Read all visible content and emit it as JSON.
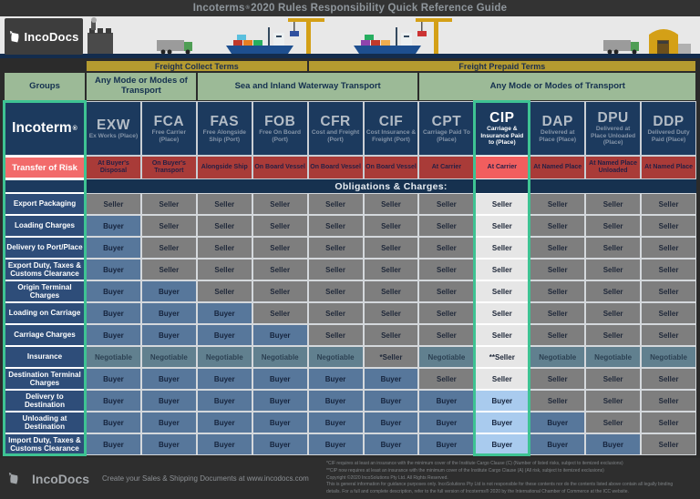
{
  "title": {
    "pre": "Incoterms",
    "mark": "®",
    "post": "2020 Rules Responsibility Quick Reference Guide"
  },
  "brand": {
    "name": "IncoDocs",
    "tagline": "Create your Sales & Shipping Documents at www.incodocs.com"
  },
  "bands": {
    "freight_collect": "Freight Collect Terms",
    "freight_prepaid": "Freight Prepaid Terms"
  },
  "groups_row": {
    "label": "Groups",
    "spans": [
      {
        "label": "Any Mode or Modes of Transport",
        "cols": 2
      },
      {
        "label": "Sea and Inland Waterway Transport",
        "cols": 4
      },
      {
        "label": "Any Mode or Modes of Transport",
        "cols": 5
      }
    ]
  },
  "incoterm_label": "Incoterm",
  "registered_mark": "®",
  "risk_label": "Transfer of Risk",
  "obligations_band": "Obligations & Charges:",
  "columns": [
    {
      "code": "EXW",
      "subtitle": "Ex Works (Place)",
      "risk": "At Buyer's Disposal",
      "highlight": false
    },
    {
      "code": "FCA",
      "subtitle": "Free Carrier (Place)",
      "risk": "On Buyer's Transport",
      "highlight": false
    },
    {
      "code": "FAS",
      "subtitle": "Free Alongside Ship (Port)",
      "risk": "Alongside Ship",
      "highlight": false
    },
    {
      "code": "FOB",
      "subtitle": "Free On Board (Port)",
      "risk": "On Board Vessel",
      "highlight": false
    },
    {
      "code": "CFR",
      "subtitle": "Cost and Freight (Port)",
      "risk": "On Board Vessel",
      "highlight": false
    },
    {
      "code": "CIF",
      "subtitle": "Cost Insurance & Freight (Port)",
      "risk": "On Board Vessel",
      "highlight": false
    },
    {
      "code": "CPT",
      "subtitle": "Carriage Paid To (Place)",
      "risk": "At Carrier",
      "highlight": false
    },
    {
      "code": "CIP",
      "subtitle": "Carriage & Insurance Paid to (Place)",
      "risk": "At Carrier",
      "highlight": true
    },
    {
      "code": "DAP",
      "subtitle": "Delivered at Place (Place)",
      "risk": "At Named Place",
      "highlight": false
    },
    {
      "code": "DPU",
      "subtitle": "Delivered at Place Unloaded (Place)",
      "risk": "At Named Place Unloaded",
      "highlight": false
    },
    {
      "code": "DDP",
      "subtitle": "Delivered Duty Paid (Place)",
      "risk": "At Named Place",
      "highlight": false
    }
  ],
  "rows": [
    {
      "label": "Export Packaging",
      "values": [
        "Seller",
        "Seller",
        "Seller",
        "Seller",
        "Seller",
        "Seller",
        "Seller",
        "Seller",
        "Seller",
        "Seller",
        "Seller"
      ]
    },
    {
      "label": "Loading Charges",
      "values": [
        "Buyer",
        "Seller",
        "Seller",
        "Seller",
        "Seller",
        "Seller",
        "Seller",
        "Seller",
        "Seller",
        "Seller",
        "Seller"
      ]
    },
    {
      "label": "Delivery to Port/Place",
      "values": [
        "Buyer",
        "Seller",
        "Seller",
        "Seller",
        "Seller",
        "Seller",
        "Seller",
        "Seller",
        "Seller",
        "Seller",
        "Seller"
      ]
    },
    {
      "label": "Export Duty, Taxes & Customs Clearance",
      "values": [
        "Buyer",
        "Seller",
        "Seller",
        "Seller",
        "Seller",
        "Seller",
        "Seller",
        "Seller",
        "Seller",
        "Seller",
        "Seller"
      ]
    },
    {
      "label": "Origin Terminal Charges",
      "values": [
        "Buyer",
        "Buyer",
        "Seller",
        "Seller",
        "Seller",
        "Seller",
        "Seller",
        "Seller",
        "Seller",
        "Seller",
        "Seller"
      ]
    },
    {
      "label": "Loading on Carriage",
      "values": [
        "Buyer",
        "Buyer",
        "Buyer",
        "Seller",
        "Seller",
        "Seller",
        "Seller",
        "Seller",
        "Seller",
        "Seller",
        "Seller"
      ]
    },
    {
      "label": "Carriage Charges",
      "values": [
        "Buyer",
        "Buyer",
        "Buyer",
        "Buyer",
        "Seller",
        "Seller",
        "Seller",
        "Seller",
        "Seller",
        "Seller",
        "Seller"
      ]
    },
    {
      "label": "Insurance",
      "values": [
        "Negotiable",
        "Negotiable",
        "Negotiable",
        "Negotiable",
        "Negotiable",
        "*Seller",
        "Negotiable",
        "**Seller",
        "Negotiable",
        "Negotiable",
        "Negotiable"
      ]
    },
    {
      "label": "Destination Terminal Charges",
      "values": [
        "Buyer",
        "Buyer",
        "Buyer",
        "Buyer",
        "Buyer",
        "Buyer",
        "Seller",
        "Seller",
        "Seller",
        "Seller",
        "Seller"
      ]
    },
    {
      "label": "Delivery to Destination",
      "values": [
        "Buyer",
        "Buyer",
        "Buyer",
        "Buyer",
        "Buyer",
        "Buyer",
        "Buyer",
        "Buyer",
        "Seller",
        "Seller",
        "Seller"
      ]
    },
    {
      "label": "Unloading at Destination",
      "values": [
        "Buyer",
        "Buyer",
        "Buyer",
        "Buyer",
        "Buyer",
        "Buyer",
        "Buyer",
        "Buyer",
        "Buyer",
        "Seller",
        "Seller"
      ]
    },
    {
      "label": "Import Duty, Taxes & Customs Clearance",
      "values": [
        "Buyer",
        "Buyer",
        "Buyer",
        "Buyer",
        "Buyer",
        "Buyer",
        "Buyer",
        "Buyer",
        "Buyer",
        "Buyer",
        "Seller"
      ]
    }
  ],
  "footnotes": [
    "*CIF requires at least an insurance with the minimum cover of the Institute Cargo Clause (C) (Number of listed risks, subject to itemized exclusions)",
    "**CIP now requires at least an insurance with the minimum cover of the Institute Cargo Clause (A) (All risk, subject to itemized exclusions)",
    "Copyright ©2020 IncoSolutions Pty Ltd. All Rights Reserved.",
    "This is general information for guidance purposes only.  IncoSolutions Pty Ltd is not responsible for these contents nor do the contents listed above contain all legally binding",
    "details.  For a full and complete description, refer to the full version of Incoterms® 2020 by the International Chamber of Commerce at the ICC website."
  ],
  "colors": {
    "accent_teal": "#3EC393",
    "navy_header": "#1C3A5E",
    "navy_label": "#2E4D79",
    "gold_band": "#B59B30",
    "green_band": "#9CBA97",
    "risk_red": "#A93B38",
    "risk_red_highlight": "#F15E5E",
    "risk_label_red": "#F26B6B",
    "seller_gray": "#7E7E7E",
    "buyer_blue": "#57779B",
    "negotiable_blue": "#61808F",
    "cip_seller_bg": "#E6E6E6",
    "cip_buyer_bg": "#A9CBEE"
  },
  "chart_data": {
    "type": "table",
    "title": "Incoterms® 2020 Rules Responsibility Quick Reference Guide",
    "columns": [
      "EXW",
      "FCA",
      "FAS",
      "FOB",
      "CFR",
      "CIF",
      "CPT",
      "CIP",
      "DAP",
      "DPU",
      "DDP"
    ],
    "row_labels": [
      "Export Packaging",
      "Loading Charges",
      "Delivery to Port/Place",
      "Export Duty, Taxes & Customs Clearance",
      "Origin Terminal Charges",
      "Loading on Carriage",
      "Carriage Charges",
      "Insurance",
      "Destination Terminal Charges",
      "Delivery to Destination",
      "Unloading at Destination",
      "Import Duty, Taxes & Customs Clearance"
    ],
    "values": [
      [
        "Seller",
        "Seller",
        "Seller",
        "Seller",
        "Seller",
        "Seller",
        "Seller",
        "Seller",
        "Seller",
        "Seller",
        "Seller"
      ],
      [
        "Buyer",
        "Seller",
        "Seller",
        "Seller",
        "Seller",
        "Seller",
        "Seller",
        "Seller",
        "Seller",
        "Seller",
        "Seller"
      ],
      [
        "Buyer",
        "Seller",
        "Seller",
        "Seller",
        "Seller",
        "Seller",
        "Seller",
        "Seller",
        "Seller",
        "Seller",
        "Seller"
      ],
      [
        "Buyer",
        "Seller",
        "Seller",
        "Seller",
        "Seller",
        "Seller",
        "Seller",
        "Seller",
        "Seller",
        "Seller",
        "Seller"
      ],
      [
        "Buyer",
        "Buyer",
        "Seller",
        "Seller",
        "Seller",
        "Seller",
        "Seller",
        "Seller",
        "Seller",
        "Seller",
        "Seller"
      ],
      [
        "Buyer",
        "Buyer",
        "Buyer",
        "Seller",
        "Seller",
        "Seller",
        "Seller",
        "Seller",
        "Seller",
        "Seller",
        "Seller"
      ],
      [
        "Buyer",
        "Buyer",
        "Buyer",
        "Buyer",
        "Seller",
        "Seller",
        "Seller",
        "Seller",
        "Seller",
        "Seller",
        "Seller"
      ],
      [
        "Negotiable",
        "Negotiable",
        "Negotiable",
        "Negotiable",
        "Negotiable",
        "*Seller",
        "Negotiable",
        "**Seller",
        "Negotiable",
        "Negotiable",
        "Negotiable"
      ],
      [
        "Buyer",
        "Buyer",
        "Buyer",
        "Buyer",
        "Buyer",
        "Buyer",
        "Seller",
        "Seller",
        "Seller",
        "Seller",
        "Seller"
      ],
      [
        "Buyer",
        "Buyer",
        "Buyer",
        "Buyer",
        "Buyer",
        "Buyer",
        "Buyer",
        "Buyer",
        "Seller",
        "Seller",
        "Seller"
      ],
      [
        "Buyer",
        "Buyer",
        "Buyer",
        "Buyer",
        "Buyer",
        "Buyer",
        "Buyer",
        "Buyer",
        "Buyer",
        "Seller",
        "Seller"
      ],
      [
        "Buyer",
        "Buyer",
        "Buyer",
        "Buyer",
        "Buyer",
        "Buyer",
        "Buyer",
        "Buyer",
        "Buyer",
        "Buyer",
        "Seller"
      ]
    ]
  }
}
